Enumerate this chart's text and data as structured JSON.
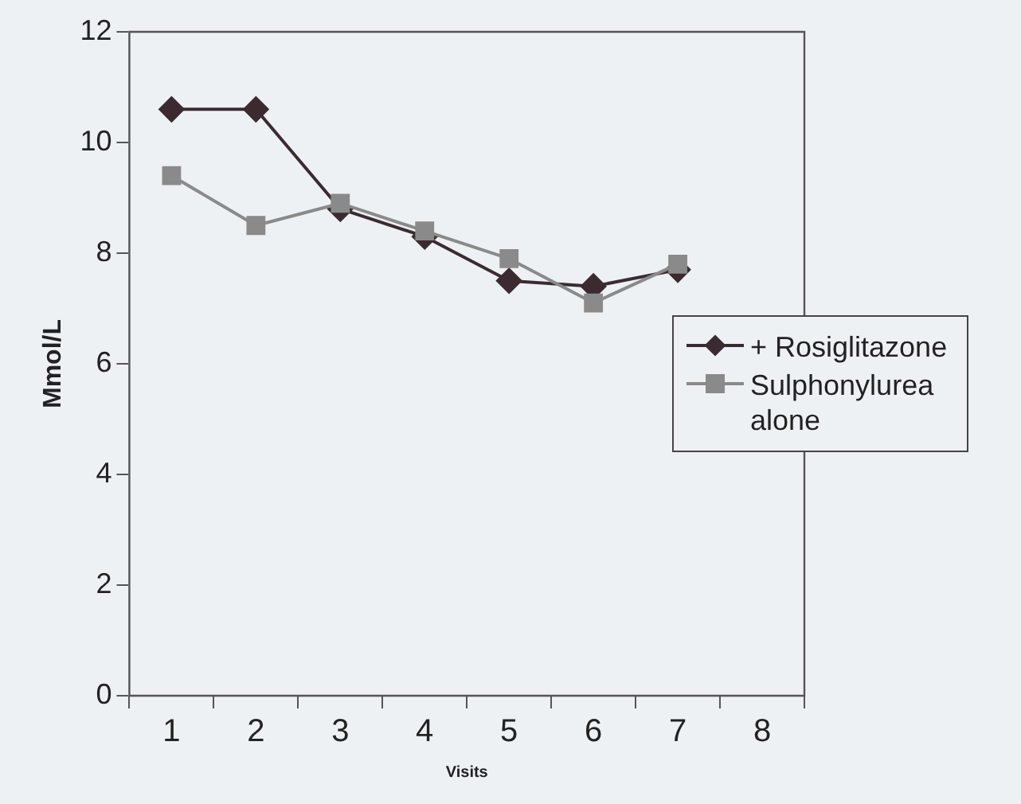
{
  "chart_data": {
    "type": "line",
    "xlabel": "Visits",
    "ylabel": "Mmol/L",
    "categories": [
      "1",
      "2",
      "3",
      "4",
      "5",
      "6",
      "7",
      "8"
    ],
    "series": [
      {
        "name": "+ Rosiglitazone",
        "color": "#3b2b30",
        "marker": "diamond",
        "values": [
          10.6,
          10.6,
          8.8,
          8.3,
          7.5,
          7.4,
          7.7,
          null
        ]
      },
      {
        "name": "Sulphonylurea alone",
        "color": "#8a8a8a",
        "marker": "square",
        "values": [
          9.4,
          8.5,
          8.9,
          8.4,
          7.9,
          7.1,
          7.8,
          null
        ]
      }
    ],
    "ylim": [
      0,
      12
    ],
    "yticks": [
      0,
      2,
      4,
      6,
      8,
      10,
      12
    ],
    "grid": false,
    "legend": "right"
  }
}
